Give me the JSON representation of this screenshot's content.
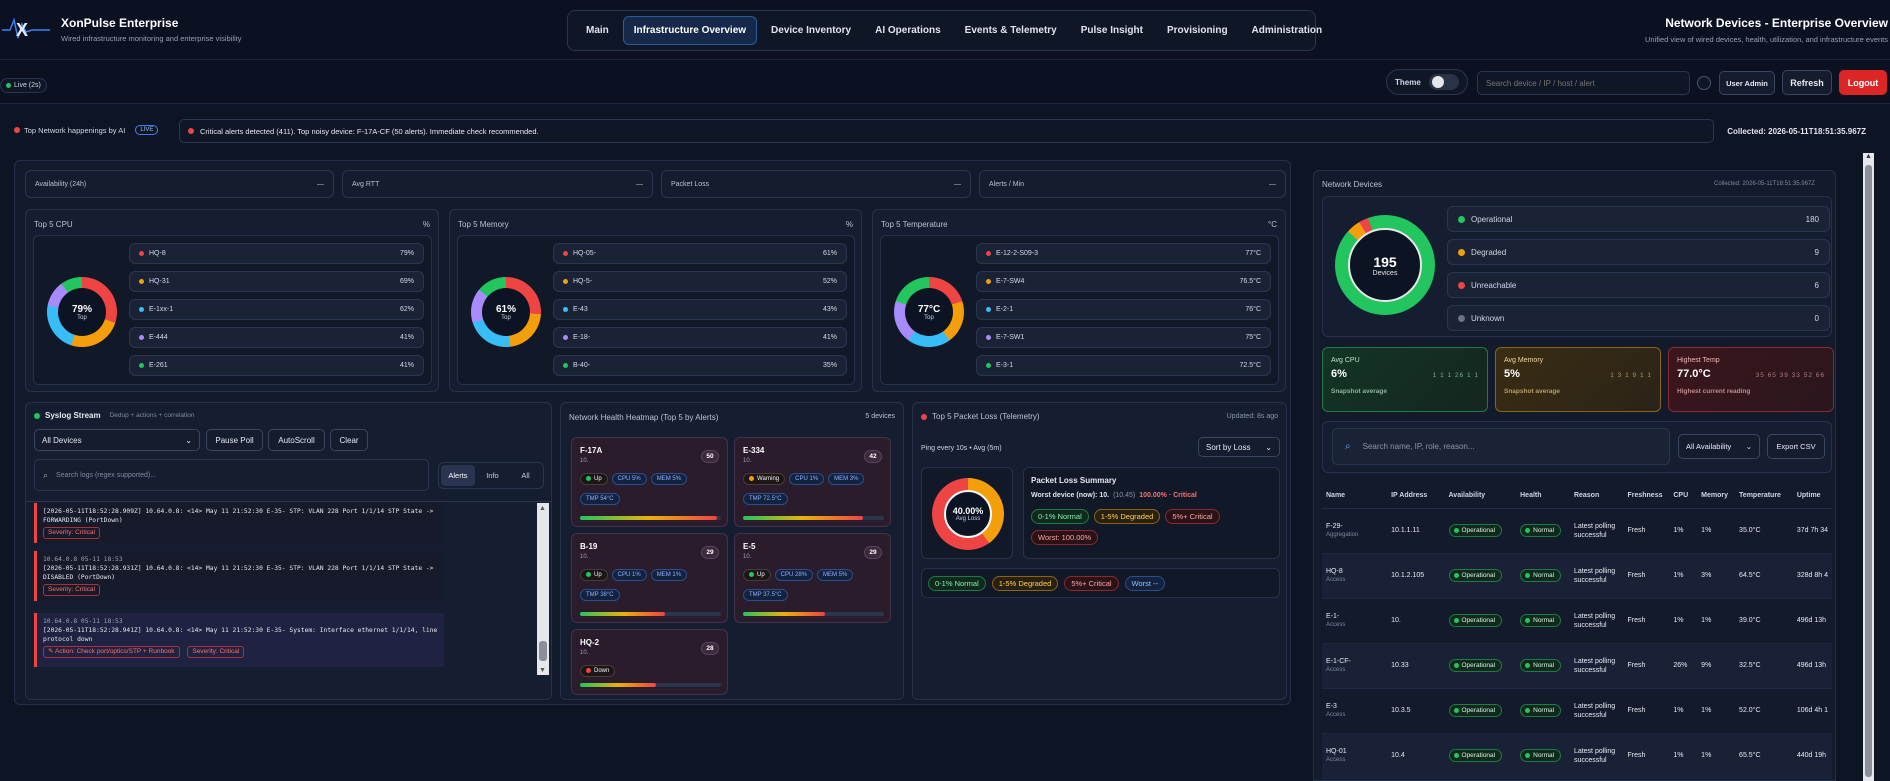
{
  "brand": {
    "name": "XonPulse Enterprise",
    "tagline": "Wired infrastructure monitoring and enterprise visibility"
  },
  "nav": {
    "tabs": [
      "Main",
      "Infrastructure Overview",
      "Device Inventory",
      "AI Operations",
      "Events & Telemetry",
      "Pulse Insight",
      "Provisioning",
      "Administration"
    ],
    "active": "Infrastructure Overview"
  },
  "page": {
    "title": "Network Devices - Enterprise Overview",
    "subtitle": "Unified view of wired devices, health, utilization, and infrastructure events"
  },
  "live_badge": "Live (2s)",
  "toolbar": {
    "theme_label": "Theme",
    "search_placeholder": "Search device / IP / host / alert",
    "user": "User Admin",
    "refresh": "Refresh",
    "logout": "Logout"
  },
  "ticker": {
    "label": "Top Network happenings by AI",
    "badge": "LIVE",
    "message": "Critical alerts detected (411). Top noisy device: F-17A-CF (50 alerts). Immediate check recommended.",
    "collected": "Collected: 2026-05-11T18:51:35.967Z"
  },
  "stats": [
    {
      "label": "Availability (24h)",
      "value": "—"
    },
    {
      "label": "Avg RTT",
      "value": "—"
    },
    {
      "label": "Packet Loss",
      "value": "—"
    },
    {
      "label": "Alerts / Min",
      "value": "—"
    }
  ],
  "top_cpu": {
    "title": "Top 5 CPU",
    "unit": "%",
    "center": "79%",
    "center_sub": "Top",
    "items": [
      {
        "name": "HQ-8",
        "value": "79%",
        "color": "#ef4444"
      },
      {
        "name": "HQ-31",
        "value": "69%",
        "color": "#f59e0b"
      },
      {
        "name": "E-1xx-1",
        "value": "62%",
        "color": "#38bdf8"
      },
      {
        "name": "E-444",
        "value": "41%",
        "color": "#a78bfa"
      },
      {
        "name": "E-261",
        "value": "41%",
        "color": "#22c55e"
      }
    ]
  },
  "top_mem": {
    "title": "Top 5 Memory",
    "unit": "%",
    "center": "61%",
    "center_sub": "Top",
    "items": [
      {
        "name": "HQ-05-",
        "value": "61%",
        "color": "#ef4444"
      },
      {
        "name": "HQ-5-",
        "value": "52%",
        "color": "#f59e0b"
      },
      {
        "name": "E-43",
        "value": "43%",
        "color": "#38bdf8"
      },
      {
        "name": "E-18-",
        "value": "41%",
        "color": "#a78bfa"
      },
      {
        "name": "B-40-",
        "value": "35%",
        "color": "#22c55e"
      }
    ]
  },
  "top_temp": {
    "title": "Top 5 Temperature",
    "unit": "°C",
    "center": "77°C",
    "center_sub": "Top",
    "items": [
      {
        "name": "E-12-2-S09-3",
        "value": "77°C",
        "color": "#ef4444"
      },
      {
        "name": "E-7-SW4",
        "value": "76.5°C",
        "color": "#f59e0b"
      },
      {
        "name": "E-2-1",
        "value": "76°C",
        "color": "#38bdf8"
      },
      {
        "name": "E-7-SW1",
        "value": "75°C",
        "color": "#a78bfa"
      },
      {
        "name": "E-3-1",
        "value": "72.5°C",
        "color": "#22c55e"
      }
    ]
  },
  "syslog": {
    "title": "Syslog Stream",
    "subtitle": "Dedup + actions + correlation",
    "filter": "All Devices",
    "buttons": [
      "Pause Poll",
      "AutoScroll",
      "Clear"
    ],
    "search_placeholder": "Search logs (regex supported)...",
    "levels": [
      "Alerts",
      "Info",
      "All"
    ],
    "entries": [
      {
        "head": "",
        "line1": "[2026-05-11T18:52:28.909Z] 10.64.0.8: <14> May 11 21:52:30 E-35- STP: VLAN 228 Port 1/1/14 STP State ->",
        "line2": "FORWARDING (PortDown)",
        "action": "",
        "severity": "Severity: Critical"
      },
      {
        "head": "10.64.0.8 05-11 18:53",
        "line1": "[2026-05-11T18:52:28.931Z] 10.64.0.8: <14> May 11 21:52:30 E-35- STP: VLAN 228 Port 1/1/14 STP State ->",
        "line2": "DISABLED (PortDown)",
        "action": "",
        "severity": "Severity: Critical"
      },
      {
        "head": "10.64.0.8 05-11 18:53",
        "line1": "[2026-05-11T18:52:28.941Z] 10.64.0.8: <14> May 11 21:52:30 E-35- System: Interface ethernet 1/1/14, line",
        "line2": "protocol down",
        "action": "Action: Check port/optics/STP + Runbook",
        "severity": "Severity: Critical"
      }
    ]
  },
  "heatmap": {
    "title": "Network Health Heatmap (Top 5 by Alerts)",
    "count": "5 devices",
    "cards": [
      {
        "name": "F-17A",
        "ip": "10.",
        "alerts": "50",
        "status": "Up",
        "cpu": "CPU 5%",
        "mem": "MEM 5%",
        "temp": "TMP 54°C",
        "health": 0.97
      },
      {
        "name": "E-334",
        "ip": "10.",
        "alerts": "42",
        "status": "Warning",
        "cpu": "CPU 1%",
        "mem": "MEM 3%",
        "temp": "TMP 72.5°C",
        "health": 0.85
      },
      {
        "name": "B-19",
        "ip": "10.",
        "alerts": "29",
        "status": "Up",
        "cpu": "CPU 1%",
        "mem": "MEM 1%",
        "temp": "TMP 38°C",
        "health": 0.6
      },
      {
        "name": "E-5",
        "ip": "10.",
        "alerts": "29",
        "status": "Up",
        "cpu": "CPU 28%",
        "mem": "MEM 5%",
        "temp": "TMP 37.5°C",
        "health": 0.58
      },
      {
        "name": "HQ-2",
        "ip": "10.",
        "alerts": "28",
        "status": "Down",
        "cpu": "",
        "mem": "",
        "temp": "",
        "health": 0.54
      }
    ]
  },
  "packet_loss": {
    "title": "Top 5 Packet Loss (Telemetry)",
    "updated": "Updated: 8s ago",
    "sort": "Sort by Loss",
    "ping": "Ping every 10s • Avg (5m)",
    "center": "40.00%",
    "center_sub": "Avg Loss",
    "loss_fraction": 0.4,
    "summary_title": "Packet Loss Summary",
    "worst_label": "Worst device (now): 10.",
    "worst_ip": "(10.45)",
    "worst_value": "100.00% · Critical",
    "chips": [
      "0-1% Normal",
      "1-5% Degraded",
      "5%+ Critical"
    ],
    "worst_chip": "Worst: 100.00%",
    "legend": [
      "0-1% Normal",
      "1-5% Degraded",
      "5%+ Critical",
      "Worst --"
    ]
  },
  "devices": {
    "title": "Network Devices",
    "collected": "Collected: 2026-05-11T18:51:35.967Z",
    "total": "195",
    "total_label": "Devices",
    "statuses": [
      {
        "label": "Operational",
        "value": "180",
        "color": "#22c55e"
      },
      {
        "label": "Degraded",
        "value": "9",
        "color": "#f59e0b"
      },
      {
        "label": "Unreachable",
        "value": "6",
        "color": "#ef4444"
      },
      {
        "label": "Unknown",
        "value": "0",
        "color": "#6b7280"
      }
    ],
    "kpis": [
      {
        "label": "Avg CPU",
        "value": "6%",
        "sub": "Snapshot average",
        "spark": "1 1 1 26 1 1"
      },
      {
        "label": "Avg Memory",
        "value": "5%",
        "sub": "Snapshot average",
        "spark": "1 3 1 9 1 1"
      },
      {
        "label": "Highest Temp",
        "value": "77.0°C",
        "sub": "Highest current reading",
        "spark": "35 65 39 33 52 66"
      }
    ],
    "search_placeholder": "Search name, IP, role, reason...",
    "availability_filter": "All Availability",
    "export": "Export CSV",
    "columns": [
      "Name",
      "IP Address",
      "Availability",
      "Health",
      "Reason",
      "Freshness",
      "CPU",
      "Memory",
      "Temperature",
      "Uptime"
    ],
    "rows": [
      {
        "name": "F-29-",
        "role": "Aggregation",
        "ip": "10.1.1.11",
        "avail": "Operational",
        "health": "Normal",
        "reason": "Latest polling successful",
        "fresh": "Fresh",
        "cpu": "1%",
        "mem": "1%",
        "temp": "35.0°C",
        "uptime": "37d 7h 34"
      },
      {
        "name": "HQ-8",
        "role": "Access",
        "ip": "10.1.2.105",
        "avail": "Operational",
        "health": "Normal",
        "reason": "Latest polling successful",
        "fresh": "Fresh",
        "cpu": "1%",
        "mem": "3%",
        "temp": "64.5°C",
        "uptime": "328d 8h 4"
      },
      {
        "name": "E-1-",
        "role": "Access",
        "ip": "10.",
        "avail": "Operational",
        "health": "Normal",
        "reason": "Latest polling successful",
        "fresh": "Fresh",
        "cpu": "1%",
        "mem": "1%",
        "temp": "39.0°C",
        "uptime": "496d 13h"
      },
      {
        "name": "E-1-CF-",
        "role": "Access",
        "ip": "10.33",
        "avail": "Operational",
        "health": "Normal",
        "reason": "Latest polling successful",
        "fresh": "Fresh",
        "cpu": "26%",
        "mem": "9%",
        "temp": "32.5°C",
        "uptime": "496d 13h"
      },
      {
        "name": "E-3",
        "role": "Access",
        "ip": "10.3.5",
        "avail": "Operational",
        "health": "Normal",
        "reason": "Latest polling successful",
        "fresh": "Fresh",
        "cpu": "1%",
        "mem": "1%",
        "temp": "52.0°C",
        "uptime": "106d 4h 1"
      },
      {
        "name": "HQ-01",
        "role": "Access",
        "ip": "10.4",
        "avail": "Operational",
        "health": "Normal",
        "reason": "Latest polling successful",
        "fresh": "Fresh",
        "cpu": "1%",
        "mem": "1%",
        "temp": "65.5°C",
        "uptime": "440d 19h"
      }
    ]
  },
  "colors": {
    "accent": "#3b82f6",
    "ok": "#22c55e",
    "warn": "#f59e0b",
    "crit": "#ef4444",
    "logout": "#dc2626"
  }
}
